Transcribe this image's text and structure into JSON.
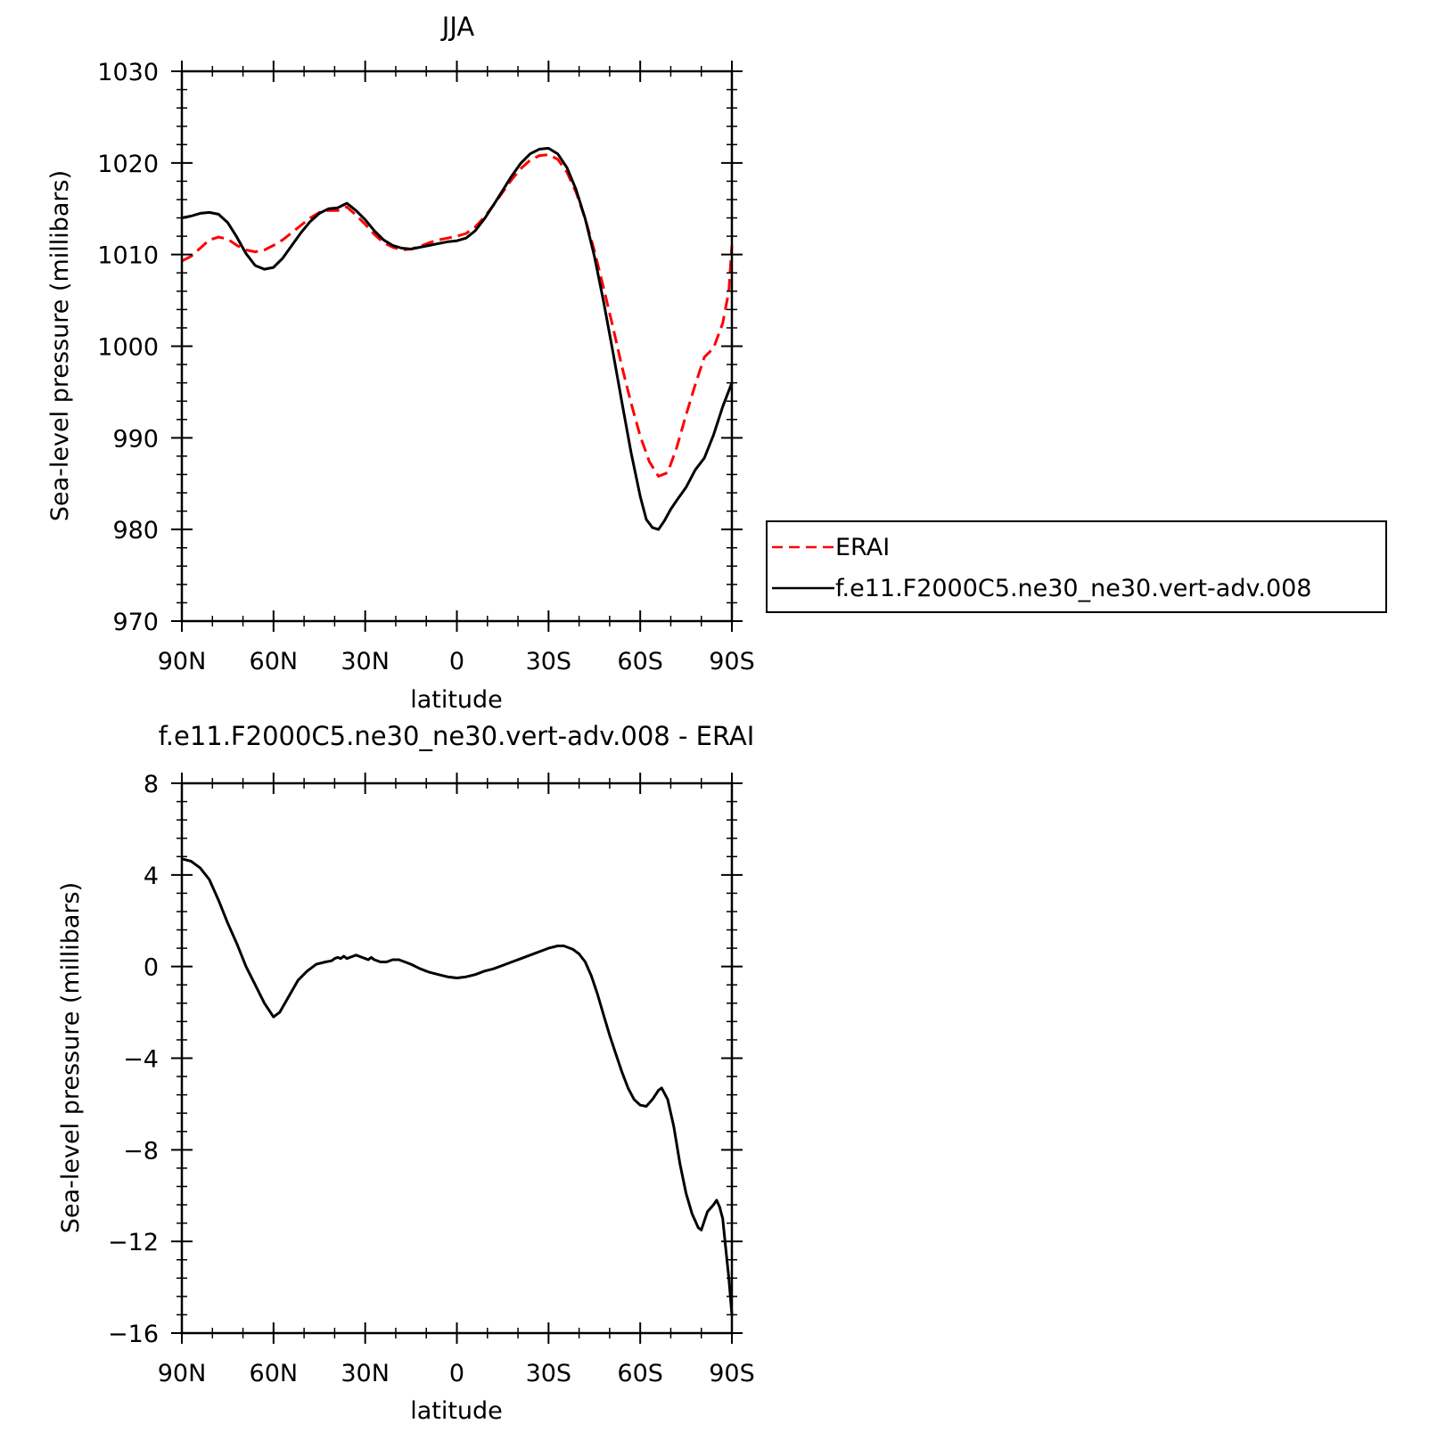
{
  "chart_data": [
    {
      "type": "line",
      "title": "JJA",
      "xlabel": "latitude",
      "ylabel": "Sea-level pressure (millibars)",
      "x_tick_labels": [
        "90N",
        "60N",
        "30N",
        "0",
        "30S",
        "60S",
        "90S"
      ],
      "x_tick_values": [
        90,
        60,
        30,
        0,
        -30,
        -60,
        -90
      ],
      "xlim": [
        90,
        -90
      ],
      "ylim": [
        970,
        1030
      ],
      "y_tick_values": [
        970,
        980,
        990,
        1000,
        1010,
        1020,
        1030
      ],
      "y_tick_labels": [
        "970",
        "980",
        "990",
        "1000",
        "1010",
        "1020",
        "1030"
      ],
      "grid": false,
      "legend_position": "right",
      "series": [
        {
          "name": "ERAI",
          "color": "#ff0000",
          "dash": "dashed",
          "points": [
            [
              90,
              1009.3
            ],
            [
              87,
              1009.8
            ],
            [
              84,
              1010.7
            ],
            [
              81,
              1011.6
            ],
            [
              78,
              1011.9
            ],
            [
              75,
              1011.7
            ],
            [
              72,
              1011.0
            ],
            [
              69,
              1010.5
            ],
            [
              66,
              1010.3
            ],
            [
              63,
              1010.5
            ],
            [
              60,
              1011.0
            ],
            [
              57,
              1011.6
            ],
            [
              54,
              1012.4
            ],
            [
              51,
              1013.2
            ],
            [
              48,
              1014.0
            ],
            [
              45,
              1014.6
            ],
            [
              42,
              1014.8
            ],
            [
              39,
              1014.8
            ],
            [
              36,
              1015.2
            ],
            [
              33,
              1014.3
            ],
            [
              30,
              1013.3
            ],
            [
              27,
              1012.2
            ],
            [
              24,
              1011.3
            ],
            [
              21,
              1010.8
            ],
            [
              18,
              1010.5
            ],
            [
              15,
              1010.6
            ],
            [
              12,
              1010.9
            ],
            [
              9,
              1011.3
            ],
            [
              6,
              1011.6
            ],
            [
              3,
              1011.8
            ],
            [
              0,
              1012.0
            ],
            [
              -3,
              1012.3
            ],
            [
              -6,
              1013.0
            ],
            [
              -9,
              1014.1
            ],
            [
              -12,
              1015.4
            ],
            [
              -15,
              1016.8
            ],
            [
              -18,
              1018.2
            ],
            [
              -21,
              1019.4
            ],
            [
              -24,
              1020.3
            ],
            [
              -27,
              1020.8
            ],
            [
              -30,
              1020.9
            ],
            [
              -33,
              1020.4
            ],
            [
              -36,
              1019.0
            ],
            [
              -39,
              1016.8
            ],
            [
              -42,
              1013.9
            ],
            [
              -45,
              1010.4
            ],
            [
              -48,
              1006.4
            ],
            [
              -51,
              1002.2
            ],
            [
              -54,
              997.8
            ],
            [
              -57,
              993.8
            ],
            [
              -60,
              990.2
            ],
            [
              -63,
              987.4
            ],
            [
              -66,
              985.8
            ],
            [
              -69,
              986.2
            ],
            [
              -72,
              989.0
            ],
            [
              -75,
              992.5
            ],
            [
              -78,
              995.8
            ],
            [
              -81,
              998.8
            ],
            [
              -84,
              999.8
            ],
            [
              -87,
              1002.5
            ],
            [
              -89,
              1006.0
            ],
            [
              -90,
              1011.0
            ]
          ]
        },
        {
          "name": "f.e11.F2000C5.ne30_ne30.vert-adv.008",
          "color": "#000000",
          "dash": "solid",
          "points": [
            [
              90,
              1014.0
            ],
            [
              87,
              1014.2
            ],
            [
              84,
              1014.5
            ],
            [
              81,
              1014.6
            ],
            [
              78,
              1014.4
            ],
            [
              75,
              1013.5
            ],
            [
              72,
              1011.9
            ],
            [
              69,
              1010.1
            ],
            [
              66,
              1008.8
            ],
            [
              63,
              1008.4
            ],
            [
              60,
              1008.6
            ],
            [
              57,
              1009.6
            ],
            [
              54,
              1011.0
            ],
            [
              51,
              1012.4
            ],
            [
              48,
              1013.6
            ],
            [
              45,
              1014.5
            ],
            [
              42,
              1015.0
            ],
            [
              39,
              1015.1
            ],
            [
              36,
              1015.6
            ],
            [
              33,
              1014.8
            ],
            [
              30,
              1013.8
            ],
            [
              27,
              1012.6
            ],
            [
              24,
              1011.6
            ],
            [
              21,
              1011.0
            ],
            [
              18,
              1010.7
            ],
            [
              15,
              1010.6
            ],
            [
              12,
              1010.8
            ],
            [
              9,
              1011.0
            ],
            [
              6,
              1011.2
            ],
            [
              3,
              1011.4
            ],
            [
              0,
              1011.5
            ],
            [
              -3,
              1011.8
            ],
            [
              -6,
              1012.6
            ],
            [
              -9,
              1013.9
            ],
            [
              -12,
              1015.4
            ],
            [
              -15,
              1017.0
            ],
            [
              -18,
              1018.6
            ],
            [
              -21,
              1020.0
            ],
            [
              -24,
              1021.0
            ],
            [
              -27,
              1021.5
            ],
            [
              -30,
              1021.6
            ],
            [
              -33,
              1021.0
            ],
            [
              -36,
              1019.5
            ],
            [
              -39,
              1017.1
            ],
            [
              -42,
              1013.9
            ],
            [
              -45,
              1009.8
            ],
            [
              -48,
              1004.9
            ],
            [
              -51,
              999.5
            ],
            [
              -54,
              993.9
            ],
            [
              -57,
              988.4
            ],
            [
              -60,
              983.6
            ],
            [
              -62,
              981.1
            ],
            [
              -64,
              980.2
            ],
            [
              -66,
              980.0
            ],
            [
              -68,
              981.0
            ],
            [
              -70,
              982.2
            ],
            [
              -72,
              983.2
            ],
            [
              -75,
              984.6
            ],
            [
              -78,
              986.5
            ],
            [
              -81,
              987.8
            ],
            [
              -84,
              990.3
            ],
            [
              -87,
              993.4
            ],
            [
              -90,
              996.0
            ]
          ]
        }
      ]
    },
    {
      "type": "line",
      "title": "f.e11.F2000C5.ne30_ne30.vert-adv.008 - ERAI",
      "xlabel": "latitude",
      "ylabel": "Sea-level pressure (millibars)",
      "x_tick_labels": [
        "90N",
        "60N",
        "30N",
        "0",
        "30S",
        "60S",
        "90S"
      ],
      "x_tick_values": [
        90,
        60,
        30,
        0,
        -30,
        -60,
        -90
      ],
      "xlim": [
        90,
        -90
      ],
      "ylim": [
        -16,
        8
      ],
      "y_tick_values": [
        -16,
        -12,
        -8,
        -4,
        0,
        4,
        8
      ],
      "y_tick_labels": [
        "-16",
        "-12",
        "-8",
        "-4",
        "0",
        "4",
        "8"
      ],
      "grid": false,
      "series": [
        {
          "color": "#000000",
          "dash": "solid",
          "points": [
            [
              90,
              4.7
            ],
            [
              87,
              4.6
            ],
            [
              84,
              4.3
            ],
            [
              81,
              3.8
            ],
            [
              78,
              2.9
            ],
            [
              75,
              1.9
            ],
            [
              72,
              1.0
            ],
            [
              69,
              0.0
            ],
            [
              66,
              -0.8
            ],
            [
              63,
              -1.6
            ],
            [
              61,
              -2.0
            ],
            [
              60,
              -2.2
            ],
            [
              58,
              -2.0
            ],
            [
              55,
              -1.3
            ],
            [
              52,
              -0.6
            ],
            [
              49,
              -0.2
            ],
            [
              46,
              0.1
            ],
            [
              43,
              0.2
            ],
            [
              41,
              0.25
            ],
            [
              40,
              0.35
            ],
            [
              39,
              0.4
            ],
            [
              38,
              0.35
            ],
            [
              37,
              0.45
            ],
            [
              36,
              0.35
            ],
            [
              35,
              0.4
            ],
            [
              34,
              0.45
            ],
            [
              33,
              0.5
            ],
            [
              31,
              0.4
            ],
            [
              30,
              0.35
            ],
            [
              29,
              0.3
            ],
            [
              28,
              0.4
            ],
            [
              27,
              0.3
            ],
            [
              25,
              0.2
            ],
            [
              23,
              0.2
            ],
            [
              21,
              0.3
            ],
            [
              19,
              0.3
            ],
            [
              17,
              0.2
            ],
            [
              15,
              0.1
            ],
            [
              12,
              -0.1
            ],
            [
              9,
              -0.25
            ],
            [
              6,
              -0.35
            ],
            [
              3,
              -0.45
            ],
            [
              0,
              -0.5
            ],
            [
              -3,
              -0.45
            ],
            [
              -6,
              -0.35
            ],
            [
              -9,
              -0.2
            ],
            [
              -12,
              -0.1
            ],
            [
              -15,
              0.05
            ],
            [
              -18,
              0.2
            ],
            [
              -21,
              0.35
            ],
            [
              -24,
              0.5
            ],
            [
              -27,
              0.65
            ],
            [
              -30,
              0.8
            ],
            [
              -33,
              0.9
            ],
            [
              -35,
              0.9
            ],
            [
              -38,
              0.75
            ],
            [
              -40,
              0.55
            ],
            [
              -42,
              0.2
            ],
            [
              -44,
              -0.4
            ],
            [
              -46,
              -1.2
            ],
            [
              -48,
              -2.1
            ],
            [
              -50,
              -3.0
            ],
            [
              -52,
              -3.8
            ],
            [
              -54,
              -4.6
            ],
            [
              -56,
              -5.3
            ],
            [
              -58,
              -5.8
            ],
            [
              -60,
              -6.05
            ],
            [
              -62,
              -6.1
            ],
            [
              -64,
              -5.8
            ],
            [
              -66,
              -5.4
            ],
            [
              -67,
              -5.3
            ],
            [
              -69,
              -5.8
            ],
            [
              -71,
              -7.0
            ],
            [
              -73,
              -8.6
            ],
            [
              -75,
              -9.9
            ],
            [
              -77,
              -10.8
            ],
            [
              -79,
              -11.4
            ],
            [
              -80,
              -11.5
            ],
            [
              -82,
              -10.7
            ],
            [
              -84,
              -10.4
            ],
            [
              -85,
              -10.2
            ],
            [
              -86,
              -10.5
            ],
            [
              -87,
              -11.0
            ],
            [
              -88,
              -12.3
            ],
            [
              -89,
              -13.6
            ],
            [
              -90,
              -15.2
            ]
          ]
        }
      ]
    }
  ]
}
